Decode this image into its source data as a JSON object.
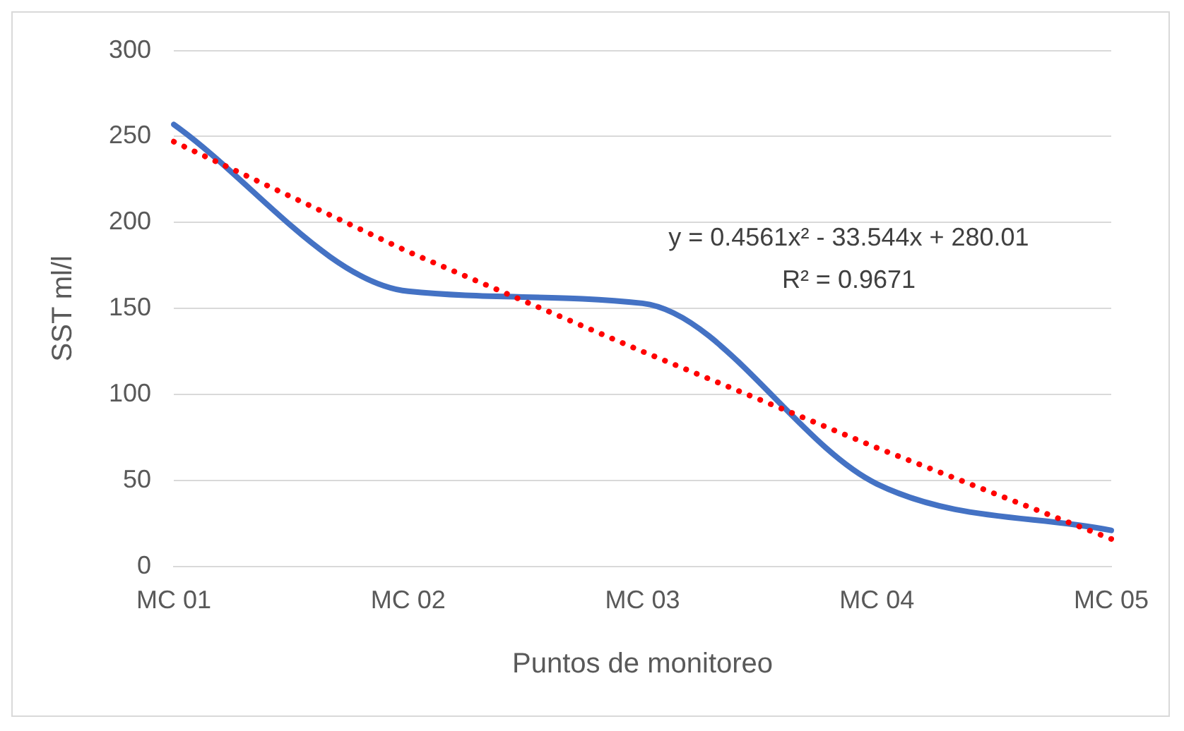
{
  "chart_data": {
    "type": "line",
    "xlabel": "Puntos de monitoreo",
    "ylabel": "SST ml/l",
    "categories": [
      "MC 01",
      "MC 02",
      "MC 03",
      "MC 04",
      "MC 05"
    ],
    "series": [
      {
        "color": "#4472c4",
        "values": [
          257,
          160,
          153,
          48,
          21
        ],
        "line_style": "solid"
      },
      {
        "type": "line",
        "color": "#ff0000",
        "values": [
          247,
          183,
          125,
          69,
          16
        ],
        "line_style": "dotted"
      }
    ],
    "ylim": [
      0,
      300
    ],
    "yticks": [
      0,
      50,
      100,
      150,
      200,
      250,
      300
    ],
    "grid": "y",
    "legend": false,
    "marker": "none",
    "annotations": [
      "y = 0.4561x² - 33.544x + 280.01",
      "R² = 0.9671"
    ]
  }
}
